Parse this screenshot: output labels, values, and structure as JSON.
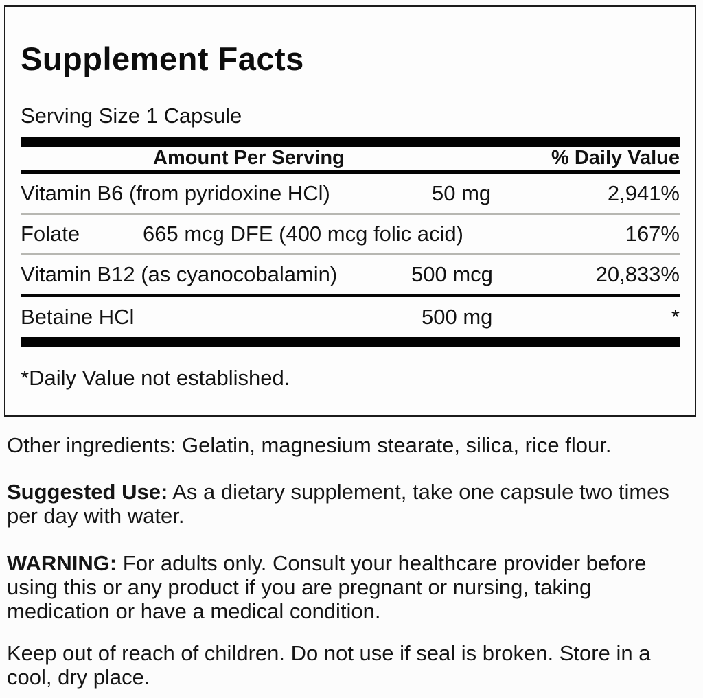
{
  "panel": {
    "title": "Supplement Facts",
    "serving_size": "Serving Size 1 Capsule",
    "header": {
      "amount_label": "Amount Per Serving",
      "daily_value_label": "% Daily Value"
    },
    "rows": [
      {
        "name": "Vitamin B6 (from pyridoxine HCl)",
        "amount": "50 mg",
        "daily_value": "2,941%"
      },
      {
        "name": "Folate",
        "amount": "665 mcg DFE (400 mcg folic acid)",
        "daily_value": "167%"
      },
      {
        "name": "Vitamin B12 (as cyanocobalamin)",
        "amount": "500 mcg",
        "daily_value": "20,833%"
      },
      {
        "name": "Betaine HCl",
        "amount": "500 mg",
        "daily_value": "*"
      }
    ],
    "footnote": "*Daily Value not established."
  },
  "body": {
    "other_ingredients": "Other ingredients: Gelatin, magnesium stearate, silica, rice flour.",
    "suggested_use_label": "Suggested Use:",
    "suggested_use_text": "As a dietary supplement, take one capsule two times per day with water.",
    "warning_label": "WARNING:",
    "warning_text": "For adults only. Consult your healthcare provider before using this or any product if you are pregnant or nursing, taking medication or have a medical condition.",
    "storage_text": "Keep out of reach of children. Do not use if seal is broken. Store in a cool, dry place."
  },
  "colors": {
    "background": "#fcfcfc",
    "panel_border": "#1b1b1b",
    "text": "#121212",
    "thick_bar": "#030303",
    "light_separator": "#b7b7b2"
  }
}
